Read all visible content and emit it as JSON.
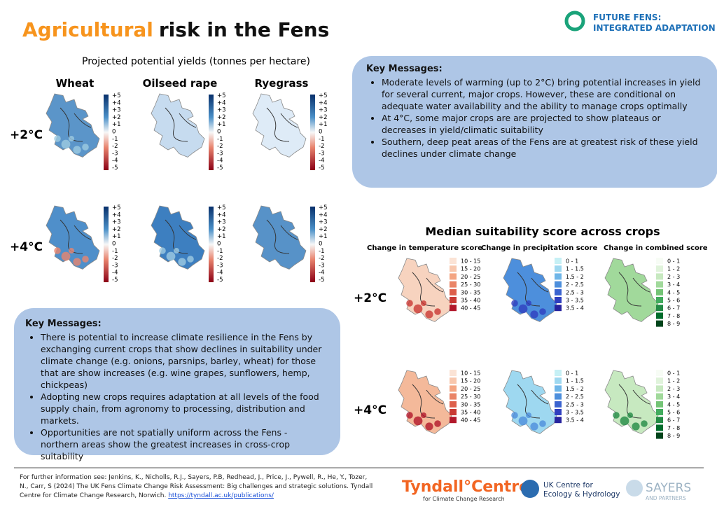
{
  "header": {
    "title_highlight": "Agricultural",
    "title_rest": "risk in the Fens",
    "logo": [
      "FUTURE FENS:",
      "INTEGRATED ADAPTATION"
    ]
  },
  "yields": {
    "title": "Projected potential yields (tonnes per hectare)",
    "crops": [
      "Wheat",
      "Oilseed rape",
      "Ryegrass"
    ],
    "scenarios": [
      "+2°C",
      "+4°C"
    ],
    "legend": [
      "+5",
      "+4",
      "+3",
      "+2",
      "+1",
      "0",
      "-1",
      "-2",
      "-3",
      "-4",
      "-5"
    ]
  },
  "key_messages_top": {
    "heading": "Key Messages:",
    "items": [
      "Moderate levels of warming (up to 2°C) bring potential increases in yield for several current, major crops. However, these are conditional on adequate water availability and the ability to manage crops optimally",
      "At 4°C, some major crops are are projected to show plateaus or decreases in yield/climatic suitability",
      "Southern, deep peat areas of the Fens are at greatest risk of these yield declines under climate change"
    ]
  },
  "suitability": {
    "title": "Median suitability score across crops",
    "panels": [
      "Change in temperature score",
      "Change in precipitation score",
      "Change in combined score"
    ],
    "scenarios": [
      "+2°C",
      "+4°C"
    ],
    "legends": [
      [
        "10 - 15",
        "15 - 20",
        "20 - 25",
        "25 - 30",
        "30 - 35",
        "35 - 40",
        "40 - 45"
      ],
      [
        "0 - 1",
        "1 - 1.5",
        "1.5 - 2",
        "2 - 2.5",
        "2.5 - 3",
        "3 - 3.5",
        "3.5 - 4"
      ],
      [
        "0 - 1",
        "1 - 2",
        "2 - 3",
        "3 - 4",
        "4 - 5",
        "5 - 6",
        "6 - 7",
        "7 - 8",
        "8 - 9"
      ]
    ]
  },
  "key_messages_bottom": {
    "heading": "Key Messages:",
    "items": [
      "There is potential to increase climate resilience in the Fens by exchanging current crops that show declines in suitability under climate change (e.g. onions, parsnips, barley, wheat) for those that are show increases (e.g. wine grapes, sunflowers, hemp, chickpeas)",
      "Adopting new crops requires adaptation at all levels of the food supply chain, from agronomy to processing, distribution and markets.",
      "Opportunities  are not spatially uniform across the  Fens -  northern areas show the greatest increases in cross-crop suitability"
    ]
  },
  "footer": {
    "citation": "For further information see: Jenkins, K., Nicholls, R.J., Sayers, P.B, Redhead, J., Price, J., Pywell, R., He, Y., Tozer, N., Carr, S (2024) The UK Fens Climate Change Risk Assessment: Big challenges and strategic solutions. Tyndall Centre for Climate Change Research, Norwich.",
    "link": "https://tyndall.ac.uk/publications/",
    "tyndall": [
      "Tyndall°Centre",
      "for Climate Change Research"
    ],
    "ukceh": [
      "UK Centre for",
      "Ecology & Hydrology"
    ],
    "sayers": [
      "SAYERS",
      "AND PARTNERS"
    ]
  }
}
